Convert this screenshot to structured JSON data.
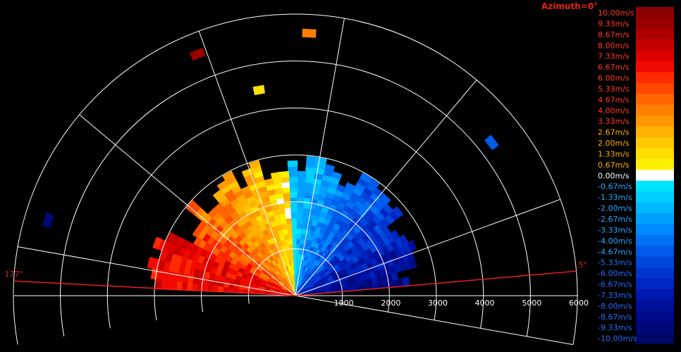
{
  "chart_data": {
    "type": "heatmap",
    "subtype": "radar-ppi-sector",
    "azimuth_label": "Azimuth=0°",
    "sector_edge_labels": [
      "177°",
      "5°"
    ],
    "range_ticks": [
      "1000",
      "2000",
      "3000",
      "4000",
      "5000",
      "6000"
    ],
    "range_max": 6000,
    "colorbar": {
      "unit": "m/s",
      "min": -10,
      "max": 10,
      "labels": [
        "10.00m/s",
        "9.33m/s",
        "8.67m/s",
        "8.00m/s",
        "7.33m/s",
        "6.67m/s",
        "6.00m/s",
        "5.33m/s",
        "4.67m/s",
        "4.00m/s",
        "3.33m/s",
        "2.67m/s",
        "2.00m/s",
        "1.33m/s",
        "0.67m/s",
        "0.00m/s",
        "-0.67m/s",
        "-1.33m/s",
        "-2.00m/s",
        "-2.67m/s",
        "-3.33m/s",
        "-4.00m/s",
        "-4.67m/s",
        "-5.33m/s",
        "-6.00m/s",
        "-6.67m/s",
        "-7.33m/s",
        "-8.00m/s",
        "-8.67m/s",
        "-9.33m/s",
        "-10.00m/s"
      ],
      "colors": [
        "#8b0000",
        "#9b0000",
        "#ad0000",
        "#c40000",
        "#dc0000",
        "#f00a00",
        "#ff2a00",
        "#ff4800",
        "#ff6500",
        "#ff8000",
        "#ff9800",
        "#ffb000",
        "#ffc800",
        "#ffdf00",
        "#fff000",
        "#ffffff",
        "#00e5ff",
        "#00cfff",
        "#00b8ff",
        "#00a0ff",
        "#0088ff",
        "#0070f5",
        "#005aea",
        "#0046dd",
        "#0034cf",
        "#0024bf",
        "#0018ad",
        "#00109b",
        "#000b89",
        "#000878",
        "#000668"
      ],
      "label_colors": {
        "positive": "#ff3b1f",
        "mid_positive": "#ffb000",
        "zero": "#ffffff",
        "negative": "#2aa8ff",
        "deep_negative": "#2a6bff"
      }
    },
    "echo_region": {
      "azimuth_range_deg": [
        5,
        177
      ],
      "range_km": [
        0,
        3500
      ],
      "description_values": "negative velocities (approaching) on right half, positive (receding) on left half"
    },
    "isolated_echoes": [
      {
        "azimuth_deg": 87,
        "range_m": 5600,
        "value": 4.0
      },
      {
        "azimuth_deg": 112,
        "range_m": 5550,
        "value": 9.5
      },
      {
        "azimuth_deg": 100,
        "range_m": 4450,
        "value": 1.5
      },
      {
        "azimuth_deg": 38,
        "range_m": 5300,
        "value": -4.5
      },
      {
        "azimuth_deg": 163,
        "range_m": 5500,
        "value": -9.0
      }
    ],
    "grid": true
  }
}
